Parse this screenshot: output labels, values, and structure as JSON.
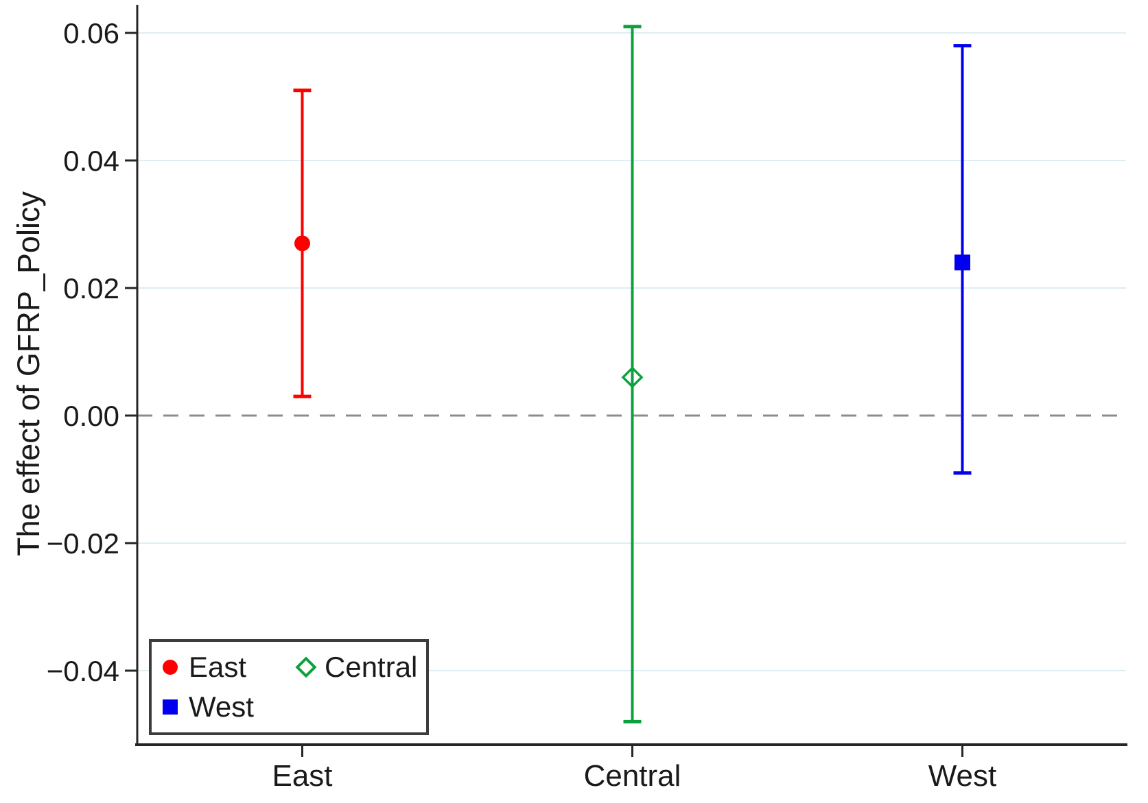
{
  "chart_data": {
    "type": "errorbar",
    "title": "",
    "xlabel": "",
    "ylabel": "The effect of GFRP_Policy",
    "categories": [
      "East",
      "Central",
      "West"
    ],
    "series": [
      {
        "name": "East",
        "color": "#ff0000",
        "marker": "circle",
        "fill": "solid",
        "estimate": 0.027,
        "ci_low": 0.003,
        "ci_high": 0.051
      },
      {
        "name": "Central",
        "color": "#0ba23e",
        "marker": "diamond",
        "fill": "hollow",
        "estimate": 0.006,
        "ci_low": -0.048,
        "ci_high": 0.061
      },
      {
        "name": "West",
        "color": "#0000ee",
        "marker": "square",
        "fill": "solid",
        "estimate": 0.024,
        "ci_low": -0.009,
        "ci_high": 0.058
      }
    ],
    "y_ticks": [
      0.06,
      0.04,
      0.02,
      0,
      -0.02,
      -0.04
    ],
    "y_tick_labels": [
      "0.06",
      "0.04",
      "0.02",
      "0.00",
      "−0.02",
      "−0.04"
    ],
    "ylim": [
      -0.052,
      0.065
    ],
    "zero_line": 0,
    "zero_line_style": "dashed",
    "grid": true,
    "legend_position": "bottom-left",
    "colors": {
      "gridline": "#ddeef2",
      "zero_line": "#8c8c8c",
      "axis": "#262626",
      "text": "#1a1a1a",
      "legend_border": "#3c3c3c",
      "background": "#ffffff"
    }
  }
}
